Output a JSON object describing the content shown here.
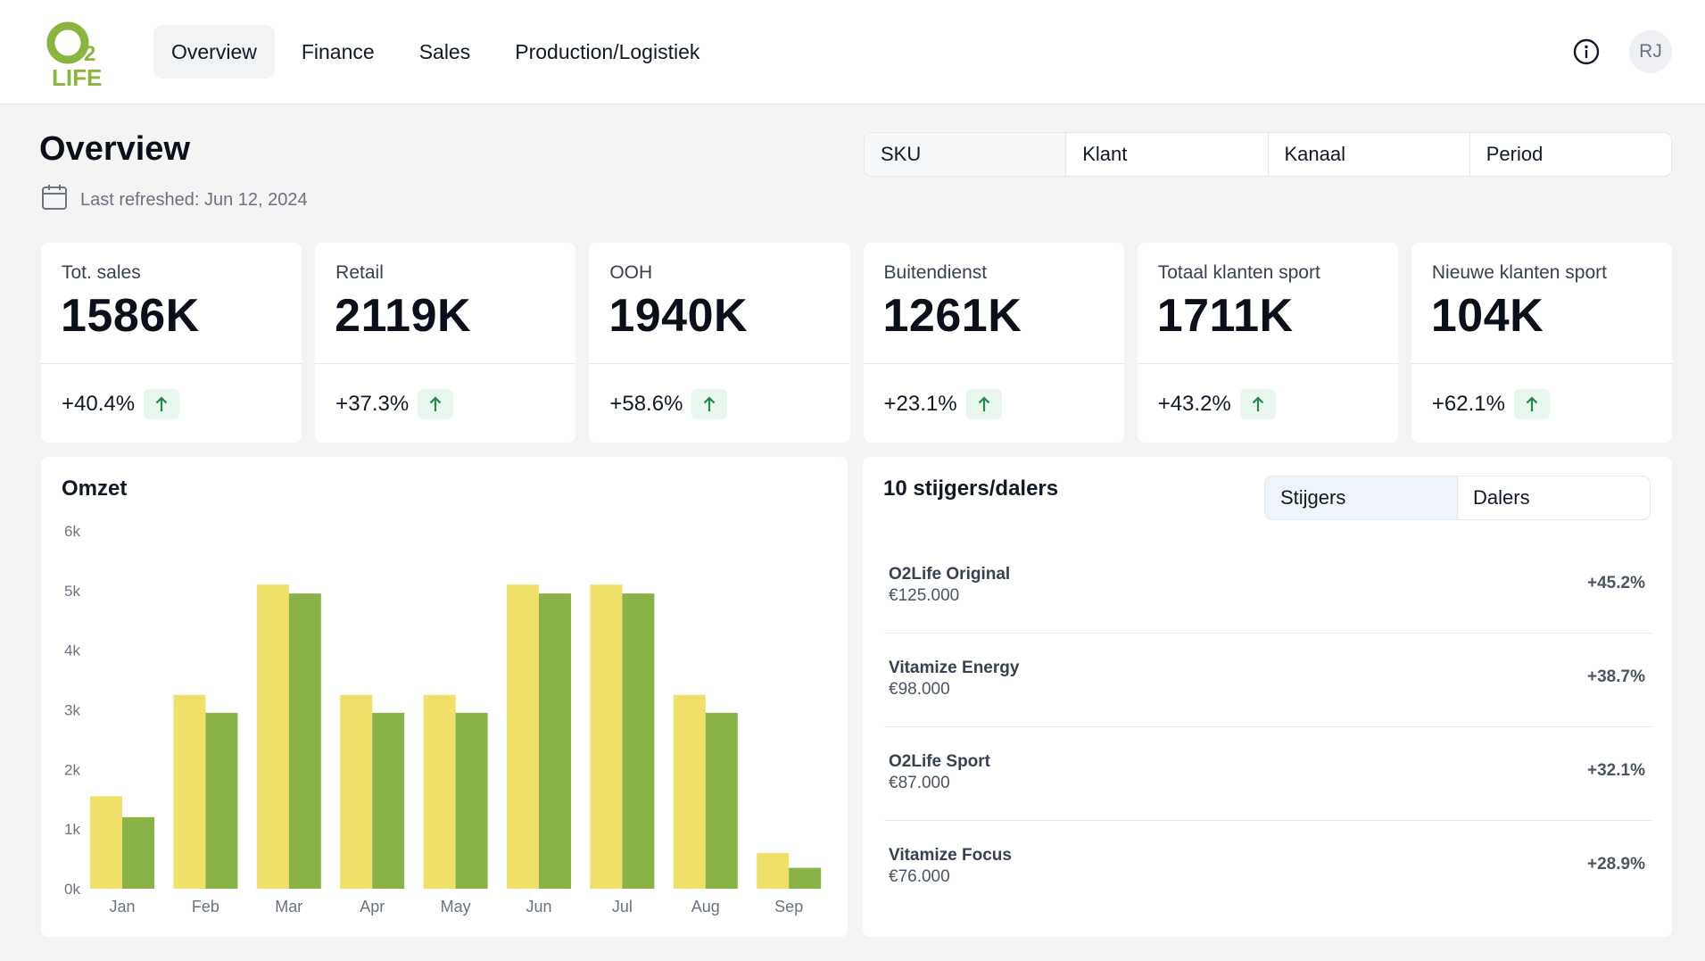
{
  "app": {
    "logo_text": "O2 LIFE",
    "user_initials": "RJ"
  },
  "nav": {
    "tabs": [
      {
        "label": "Overview",
        "active": true
      },
      {
        "label": "Finance",
        "active": false
      },
      {
        "label": "Sales",
        "active": false
      },
      {
        "label": "Production/Logistiek",
        "active": false
      }
    ]
  },
  "header": {
    "title": "Overview",
    "last_refreshed": "Last refreshed: Jun 12, 2024",
    "filters": [
      "SKU",
      "Klant",
      "Kanaal",
      "Period"
    ]
  },
  "kpis": [
    {
      "label": "Tot. sales",
      "value": "1586K",
      "delta": "+40.4%"
    },
    {
      "label": "Retail",
      "value": "2119K",
      "delta": "+37.3%"
    },
    {
      "label": "OOH",
      "value": "1940K",
      "delta": "+58.6%"
    },
    {
      "label": "Buitendienst",
      "value": "1261K",
      "delta": "+23.1%"
    },
    {
      "label": "Totaal klanten sport",
      "value": "1711K",
      "delta": "+43.2%"
    },
    {
      "label": "Nieuwe klanten sport",
      "value": "104K",
      "delta": "+62.1%"
    }
  ],
  "colors": {
    "series_a": "#f0df68",
    "series_b": "#8ab347",
    "positive_badge_bg": "#e9f7ee",
    "positive_arrow": "#1f8a4c",
    "logo_green": "#8ab63f"
  },
  "chart_data": {
    "type": "bar",
    "title": "Omzet",
    "categories": [
      "Jan",
      "Feb",
      "Mar",
      "Apr",
      "May",
      "Jun",
      "Jul",
      "Aug",
      "Sep"
    ],
    "series": [
      {
        "values": [
          1550,
          3250,
          5100,
          3250,
          3250,
          5100,
          5100,
          3250,
          600
        ]
      },
      {
        "values": [
          1200,
          2950,
          4950,
          2950,
          2950,
          4950,
          4950,
          2950,
          350
        ]
      }
    ],
    "yticks": [
      "0k",
      "1k",
      "2k",
      "3k",
      "4k",
      "5k",
      "6k"
    ],
    "ylim": [
      0,
      6000
    ],
    "grid": false
  },
  "movers": {
    "title": "10 stijgers/dalers",
    "toggle": [
      {
        "label": "Stijgers",
        "active": true
      },
      {
        "label": "Dalers",
        "active": false
      }
    ],
    "items": [
      {
        "name": "O2Life Original",
        "value": "€125.000",
        "change": "+45.2%"
      },
      {
        "name": "Vitamize Energy",
        "value": "€98.000",
        "change": "+38.7%"
      },
      {
        "name": "O2Life Sport",
        "value": "€87.000",
        "change": "+32.1%"
      },
      {
        "name": "Vitamize Focus",
        "value": "€76.000",
        "change": "+28.9%"
      }
    ]
  }
}
